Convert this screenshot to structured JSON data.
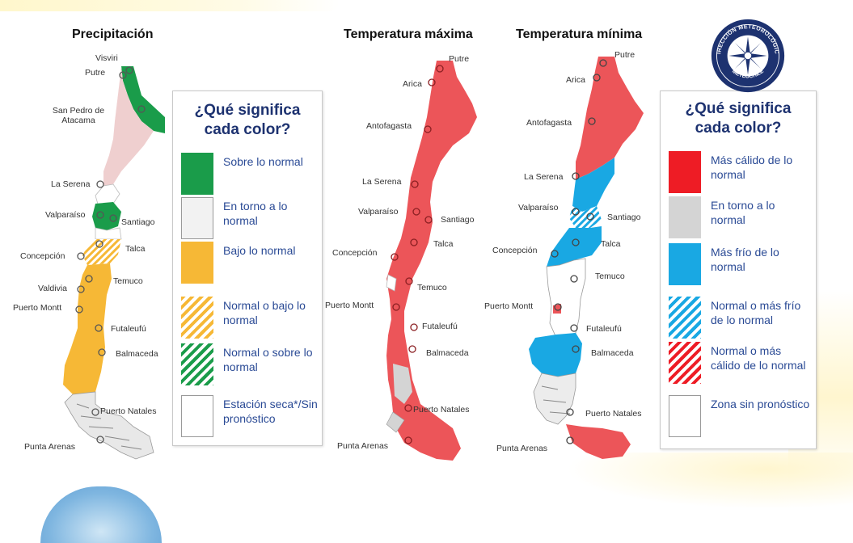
{
  "maps": [
    {
      "id": "precipitacion",
      "title": "Precipitación",
      "cities": [
        "Visviri",
        "Putre",
        "San Pedro de Atacama",
        "La Serena",
        "Valparaíso",
        "Santiago",
        "Talca",
        "Concepción",
        "Temuco",
        "Valdivia",
        "Puerto Montt",
        "Futaleufú",
        "Balmaceda",
        "Puerto Natales",
        "Punta Arenas"
      ]
    },
    {
      "id": "temperatura-maxima",
      "title": "Temperatura máxima",
      "cities": [
        "Putre",
        "Arica",
        "Antofagasta",
        "La Serena",
        "Valparaíso",
        "Santiago",
        "Talca",
        "Concepción",
        "Temuco",
        "Puerto Montt",
        "Futaleufú",
        "Balmaceda",
        "Puerto Natales",
        "Punta Arenas"
      ]
    },
    {
      "id": "temperatura-minima",
      "title": "Temperatura mínima",
      "cities": [
        "Putre",
        "Arica",
        "Antofagasta",
        "La Serena",
        "Valparaíso",
        "Santiago",
        "Talca",
        "Concepción",
        "Temuco",
        "Puerto Montt",
        "Futaleufú",
        "Balmaceda",
        "Puerto Natales",
        "Punta Arenas"
      ]
    }
  ],
  "legends": [
    {
      "id": "precip-legend",
      "heading": "¿Qué significa cada color?",
      "items": [
        {
          "label": "Sobre lo normal",
          "color": "#1a9c4a",
          "pattern": "solid"
        },
        {
          "label": "En torno a lo normal",
          "color": "#f2f2f2",
          "pattern": "solid"
        },
        {
          "label": "Bajo lo normal",
          "color": "#f6b836",
          "pattern": "solid"
        },
        {
          "label": "Normal o bajo lo normal",
          "color": "#f6b836",
          "pattern": "hatch"
        },
        {
          "label": "Normal o sobre lo normal",
          "color": "#1a9c4a",
          "pattern": "hatch"
        },
        {
          "label": "Estación seca*/Sin pronóstico",
          "color": "#ffffff",
          "pattern": "empty"
        }
      ]
    },
    {
      "id": "temp-legend",
      "heading": "¿Qué significa cada color?",
      "items": [
        {
          "label": "Más cálido de lo normal",
          "color": "#ee1c25",
          "pattern": "solid"
        },
        {
          "label": "En torno a lo normal",
          "color": "#d4d4d4",
          "pattern": "solid"
        },
        {
          "label": "Más frío de lo normal",
          "color": "#19a8e3",
          "pattern": "solid"
        },
        {
          "label": "Normal o más frío de lo normal",
          "color": "#19a8e3",
          "pattern": "hatch"
        },
        {
          "label": "Normal o más cálido de lo normal",
          "color": "#ee1c25",
          "pattern": "hatch"
        },
        {
          "label": "Zona sin pronóstico",
          "color": "#ffffff",
          "pattern": "empty"
        }
      ]
    }
  ],
  "seal": {
    "top_text": "DIRECCIÓN METEOROLÓGICA",
    "bottom_text": "METEOCHILE",
    "color": "#1d3270"
  }
}
